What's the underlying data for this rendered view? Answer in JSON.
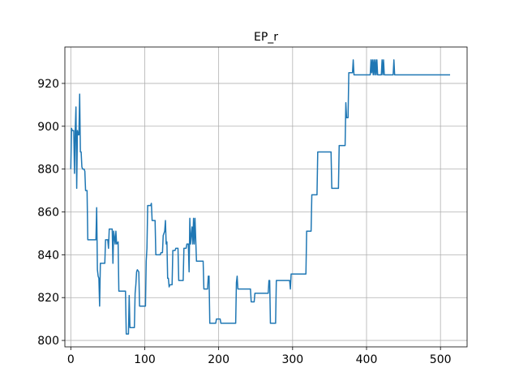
{
  "chart_data": {
    "type": "line",
    "title": "EP_r",
    "xlabel": "",
    "ylabel": "",
    "xlim": [
      -8,
      536
    ],
    "ylim": [
      797,
      937
    ],
    "grid": true,
    "legend": "none",
    "color": "#1f77b4",
    "xticks": [
      0,
      100,
      200,
      300,
      400,
      500
    ],
    "yticks": [
      800,
      820,
      840,
      860,
      880,
      900,
      920
    ],
    "series": [
      {
        "values": [
          [
            0,
            880
          ],
          [
            1,
            899
          ],
          [
            2,
            898
          ],
          [
            4,
            898
          ],
          [
            5,
            878
          ],
          [
            6,
            898
          ],
          [
            7,
            909
          ],
          [
            8,
            871
          ],
          [
            9,
            898
          ],
          [
            10,
            896
          ],
          [
            11,
            896
          ],
          [
            12,
            915
          ],
          [
            13,
            888
          ],
          [
            14,
            888
          ],
          [
            15,
            881
          ],
          [
            16,
            880
          ],
          [
            18,
            880
          ],
          [
            19,
            879
          ],
          [
            20,
            870
          ],
          [
            22,
            870
          ],
          [
            23,
            847
          ],
          [
            34,
            847
          ],
          [
            35,
            862
          ],
          [
            36,
            833
          ],
          [
            37,
            830
          ],
          [
            38,
            829
          ],
          [
            39,
            816
          ],
          [
            40,
            836
          ],
          [
            46,
            836
          ],
          [
            47,
            847
          ],
          [
            50,
            847
          ],
          [
            51,
            843
          ],
          [
            52,
            852
          ],
          [
            56,
            852
          ],
          [
            57,
            836
          ],
          [
            58,
            851
          ],
          [
            60,
            845
          ],
          [
            61,
            851
          ],
          [
            62,
            845
          ],
          [
            64,
            846
          ],
          [
            65,
            823
          ],
          [
            74,
            823
          ],
          [
            75,
            803
          ],
          [
            78,
            803
          ],
          [
            79,
            821
          ],
          [
            80,
            806
          ],
          [
            86,
            806
          ],
          [
            87,
            822
          ],
          [
            88,
            826
          ],
          [
            89,
            832
          ],
          [
            90,
            833
          ],
          [
            92,
            832
          ],
          [
            93,
            816
          ],
          [
            101,
            816
          ],
          [
            102,
            837
          ],
          [
            103,
            843
          ],
          [
            104,
            863
          ],
          [
            108,
            863
          ],
          [
            109,
            864
          ],
          [
            110,
            856
          ],
          [
            114,
            856
          ],
          [
            115,
            840
          ],
          [
            121,
            840
          ],
          [
            122,
            841
          ],
          [
            124,
            841
          ],
          [
            125,
            849
          ],
          [
            127,
            851
          ],
          [
            128,
            856
          ],
          [
            129,
            845
          ],
          [
            130,
            846
          ],
          [
            131,
            829
          ],
          [
            132,
            829
          ],
          [
            133,
            825
          ],
          [
            134,
            826
          ],
          [
            137,
            826
          ],
          [
            138,
            842
          ],
          [
            141,
            842
          ],
          [
            142,
            843
          ],
          [
            145,
            843
          ],
          [
            146,
            828
          ],
          [
            152,
            828
          ],
          [
            153,
            843
          ],
          [
            156,
            843
          ],
          [
            157,
            845
          ],
          [
            159,
            845
          ],
          [
            160,
            832
          ],
          [
            161,
            857
          ],
          [
            162,
            845
          ],
          [
            164,
            853
          ],
          [
            165,
            845
          ],
          [
            166,
            857
          ],
          [
            167,
            845
          ],
          [
            168,
            857
          ],
          [
            170,
            837
          ],
          [
            179,
            837
          ],
          [
            180,
            824
          ],
          [
            185,
            824
          ],
          [
            186,
            830
          ],
          [
            187,
            830
          ],
          [
            188,
            808
          ],
          [
            196,
            808
          ],
          [
            197,
            810
          ],
          [
            202,
            810
          ],
          [
            203,
            808
          ],
          [
            223,
            808
          ],
          [
            224,
            827
          ],
          [
            225,
            830
          ],
          [
            226,
            824
          ],
          [
            243,
            824
          ],
          [
            244,
            818
          ],
          [
            248,
            818
          ],
          [
            249,
            822
          ],
          [
            267,
            822
          ],
          [
            268,
            828
          ],
          [
            269,
            828
          ],
          [
            270,
            808
          ],
          [
            277,
            808
          ],
          [
            278,
            828
          ],
          [
            296,
            828
          ],
          [
            297,
            824
          ],
          [
            298,
            831
          ],
          [
            318,
            831
          ],
          [
            319,
            851
          ],
          [
            325,
            851
          ],
          [
            326,
            868
          ],
          [
            333,
            868
          ],
          [
            334,
            888
          ],
          [
            352,
            888
          ],
          [
            353,
            871
          ],
          [
            362,
            871
          ],
          [
            363,
            891
          ],
          [
            371,
            891
          ],
          [
            372,
            911
          ],
          [
            373,
            904
          ],
          [
            375,
            904
          ],
          [
            376,
            925
          ],
          [
            381,
            925
          ],
          [
            382,
            931
          ],
          [
            383,
            924
          ],
          [
            405,
            924
          ],
          [
            406,
            931
          ],
          [
            407,
            925
          ],
          [
            408,
            931
          ],
          [
            409,
            924
          ],
          [
            410,
            931
          ],
          [
            411,
            924
          ],
          [
            412,
            931
          ],
          [
            413,
            924
          ],
          [
            414,
            931
          ],
          [
            415,
            924
          ],
          [
            420,
            924
          ],
          [
            421,
            931
          ],
          [
            422,
            924
          ],
          [
            423,
            931
          ],
          [
            424,
            924
          ],
          [
            436,
            924
          ],
          [
            437,
            931
          ],
          [
            438,
            924
          ],
          [
            513,
            924
          ]
        ]
      }
    ]
  }
}
